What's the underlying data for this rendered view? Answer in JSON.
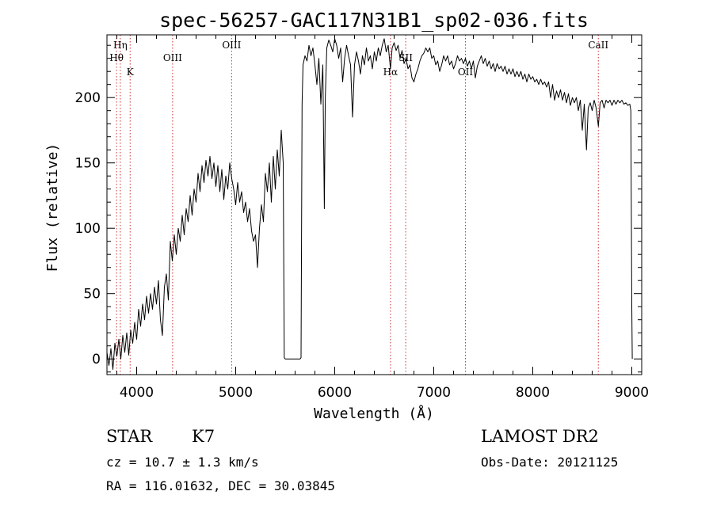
{
  "chart_data": {
    "type": "line",
    "title": "spec-56257-GAC117N31B1_sp02-036.fits",
    "xlabel": "Wavelength (Å)",
    "ylabel": "Flux (relative)",
    "xlim": [
      3700,
      9100
    ],
    "ylim": [
      -12,
      248
    ],
    "x_ticks": [
      4000,
      5000,
      6000,
      7000,
      8000,
      9000
    ],
    "y_ticks": [
      0,
      50,
      100,
      150,
      200
    ],
    "grid": false,
    "series": [
      {
        "color": "#000000",
        "points": [
          [
            3700,
            5
          ],
          [
            3720,
            -5
          ],
          [
            3740,
            8
          ],
          [
            3760,
            -8
          ],
          [
            3780,
            12
          ],
          [
            3800,
            2
          ],
          [
            3820,
            15
          ],
          [
            3840,
            0
          ],
          [
            3860,
            18
          ],
          [
            3880,
            5
          ],
          [
            3900,
            20
          ],
          [
            3920,
            3
          ],
          [
            3940,
            22
          ],
          [
            3960,
            12
          ],
          [
            3980,
            28
          ],
          [
            4000,
            15
          ],
          [
            4020,
            38
          ],
          [
            4040,
            25
          ],
          [
            4060,
            42
          ],
          [
            4080,
            30
          ],
          [
            4100,
            48
          ],
          [
            4120,
            35
          ],
          [
            4140,
            50
          ],
          [
            4160,
            38
          ],
          [
            4180,
            55
          ],
          [
            4200,
            42
          ],
          [
            4220,
            60
          ],
          [
            4240,
            30
          ],
          [
            4260,
            18
          ],
          [
            4280,
            55
          ],
          [
            4300,
            65
          ],
          [
            4320,
            45
          ],
          [
            4340,
            90
          ],
          [
            4360,
            75
          ],
          [
            4380,
            95
          ],
          [
            4400,
            80
          ],
          [
            4420,
            100
          ],
          [
            4440,
            90
          ],
          [
            4460,
            110
          ],
          [
            4480,
            95
          ],
          [
            4500,
            115
          ],
          [
            4520,
            105
          ],
          [
            4540,
            125
          ],
          [
            4560,
            110
          ],
          [
            4580,
            130
          ],
          [
            4600,
            120
          ],
          [
            4620,
            142
          ],
          [
            4640,
            128
          ],
          [
            4660,
            148
          ],
          [
            4680,
            135
          ],
          [
            4700,
            152
          ],
          [
            4720,
            140
          ],
          [
            4740,
            155
          ],
          [
            4760,
            138
          ],
          [
            4780,
            150
          ],
          [
            4800,
            132
          ],
          [
            4820,
            148
          ],
          [
            4840,
            128
          ],
          [
            4860,
            145
          ],
          [
            4880,
            122
          ],
          [
            4900,
            140
          ],
          [
            4920,
            130
          ],
          [
            4940,
            150
          ],
          [
            4960,
            138
          ],
          [
            4980,
            130
          ],
          [
            5000,
            118
          ],
          [
            5020,
            135
          ],
          [
            5040,
            120
          ],
          [
            5060,
            128
          ],
          [
            5080,
            112
          ],
          [
            5100,
            120
          ],
          [
            5120,
            105
          ],
          [
            5140,
            115
          ],
          [
            5160,
            98
          ],
          [
            5180,
            90
          ],
          [
            5200,
            95
          ],
          [
            5220,
            70
          ],
          [
            5240,
            100
          ],
          [
            5260,
            118
          ],
          [
            5280,
            105
          ],
          [
            5300,
            142
          ],
          [
            5320,
            128
          ],
          [
            5340,
            150
          ],
          [
            5360,
            120
          ],
          [
            5380,
            155
          ],
          [
            5400,
            130
          ],
          [
            5420,
            160
          ],
          [
            5440,
            140
          ],
          [
            5460,
            175
          ],
          [
            5480,
            150
          ],
          [
            5490,
            1
          ],
          [
            5500,
            0
          ],
          [
            5550,
            0
          ],
          [
            5600,
            0
          ],
          [
            5650,
            0
          ],
          [
            5660,
            1
          ],
          [
            5670,
            195
          ],
          [
            5680,
            225
          ],
          [
            5700,
            232
          ],
          [
            5720,
            228
          ],
          [
            5740,
            240
          ],
          [
            5760,
            232
          ],
          [
            5780,
            238
          ],
          [
            5800,
            225
          ],
          [
            5820,
            210
          ],
          [
            5840,
            230
          ],
          [
            5860,
            195
          ],
          [
            5880,
            225
          ],
          [
            5895,
            115
          ],
          [
            5905,
            200
          ],
          [
            5920,
            238
          ],
          [
            5940,
            244
          ],
          [
            5960,
            240
          ],
          [
            5980,
            235
          ],
          [
            6000,
            245
          ],
          [
            6020,
            240
          ],
          [
            6040,
            230
          ],
          [
            6060,
            238
          ],
          [
            6080,
            212
          ],
          [
            6100,
            230
          ],
          [
            6120,
            240
          ],
          [
            6140,
            232
          ],
          [
            6160,
            225
          ],
          [
            6180,
            185
          ],
          [
            6200,
            225
          ],
          [
            6220,
            235
          ],
          [
            6240,
            228
          ],
          [
            6260,
            218
          ],
          [
            6280,
            232
          ],
          [
            6300,
            225
          ],
          [
            6320,
            238
          ],
          [
            6340,
            228
          ],
          [
            6360,
            232
          ],
          [
            6380,
            222
          ],
          [
            6400,
            235
          ],
          [
            6420,
            228
          ],
          [
            6440,
            238
          ],
          [
            6460,
            232
          ],
          [
            6480,
            240
          ],
          [
            6500,
            245
          ],
          [
            6520,
            235
          ],
          [
            6540,
            240
          ],
          [
            6563,
            222
          ],
          [
            6580,
            238
          ],
          [
            6600,
            242
          ],
          [
            6620,
            236
          ],
          [
            6640,
            240
          ],
          [
            6660,
            230
          ],
          [
            6680,
            236
          ],
          [
            6700,
            226
          ],
          [
            6720,
            230
          ],
          [
            6740,
            222
          ],
          [
            6760,
            225
          ],
          [
            6780,
            215
          ],
          [
            6800,
            212
          ],
          [
            6820,
            218
          ],
          [
            6840,
            222
          ],
          [
            6860,
            228
          ],
          [
            6880,
            232
          ],
          [
            6900,
            234
          ],
          [
            6920,
            238
          ],
          [
            6940,
            235
          ],
          [
            6960,
            238
          ],
          [
            6980,
            230
          ],
          [
            7000,
            232
          ],
          [
            7020,
            225
          ],
          [
            7040,
            228
          ],
          [
            7060,
            220
          ],
          [
            7080,
            225
          ],
          [
            7100,
            232
          ],
          [
            7120,
            228
          ],
          [
            7140,
            232
          ],
          [
            7160,
            225
          ],
          [
            7180,
            228
          ],
          [
            7200,
            222
          ],
          [
            7220,
            226
          ],
          [
            7240,
            232
          ],
          [
            7260,
            228
          ],
          [
            7280,
            230
          ],
          [
            7300,
            226
          ],
          [
            7320,
            230
          ],
          [
            7340,
            224
          ],
          [
            7360,
            228
          ],
          [
            7380,
            222
          ],
          [
            7400,
            228
          ],
          [
            7420,
            215
          ],
          [
            7440,
            224
          ],
          [
            7460,
            228
          ],
          [
            7480,
            232
          ],
          [
            7500,
            226
          ],
          [
            7520,
            230
          ],
          [
            7540,
            224
          ],
          [
            7560,
            228
          ],
          [
            7580,
            222
          ],
          [
            7600,
            226
          ],
          [
            7620,
            220
          ],
          [
            7640,
            226
          ],
          [
            7660,
            222
          ],
          [
            7680,
            224
          ],
          [
            7700,
            220
          ],
          [
            7720,
            224
          ],
          [
            7740,
            218
          ],
          [
            7760,
            222
          ],
          [
            7780,
            218
          ],
          [
            7800,
            222
          ],
          [
            7820,
            216
          ],
          [
            7840,
            220
          ],
          [
            7860,
            216
          ],
          [
            7880,
            220
          ],
          [
            7900,
            214
          ],
          [
            7920,
            218
          ],
          [
            7940,
            212
          ],
          [
            7960,
            218
          ],
          [
            7980,
            214
          ],
          [
            8000,
            216
          ],
          [
            8020,
            212
          ],
          [
            8040,
            214
          ],
          [
            8060,
            210
          ],
          [
            8080,
            214
          ],
          [
            8100,
            210
          ],
          [
            8120,
            212
          ],
          [
            8140,
            208
          ],
          [
            8160,
            212
          ],
          [
            8180,
            200
          ],
          [
            8200,
            210
          ],
          [
            8220,
            198
          ],
          [
            8240,
            205
          ],
          [
            8260,
            200
          ],
          [
            8280,
            206
          ],
          [
            8300,
            198
          ],
          [
            8320,
            204
          ],
          [
            8340,
            196
          ],
          [
            8360,
            203
          ],
          [
            8380,
            194
          ],
          [
            8400,
            200
          ],
          [
            8420,
            196
          ],
          [
            8440,
            200
          ],
          [
            8460,
            190
          ],
          [
            8480,
            198
          ],
          [
            8500,
            175
          ],
          [
            8520,
            195
          ],
          [
            8542,
            160
          ],
          [
            8560,
            192
          ],
          [
            8580,
            196
          ],
          [
            8600,
            190
          ],
          [
            8620,
            198
          ],
          [
            8640,
            192
          ],
          [
            8662,
            178
          ],
          [
            8680,
            196
          ],
          [
            8700,
            198
          ],
          [
            8720,
            192
          ],
          [
            8740,
            198
          ],
          [
            8760,
            196
          ],
          [
            8780,
            198
          ],
          [
            8800,
            194
          ],
          [
            8820,
            198
          ],
          [
            8840,
            195
          ],
          [
            8860,
            198
          ],
          [
            8880,
            196
          ],
          [
            8900,
            198
          ],
          [
            8920,
            195
          ],
          [
            8940,
            196
          ],
          [
            8960,
            194
          ],
          [
            8980,
            195
          ],
          [
            8990,
            190
          ],
          [
            9000,
            40
          ],
          [
            9005,
            0
          ]
        ]
      }
    ],
    "line_markers": [
      {
        "label": "Hη",
        "x": 3835
      },
      {
        "label": "Hθ",
        "x": 3797
      },
      {
        "label": "K",
        "x": 3934
      },
      {
        "label": "OIII",
        "x": 4363
      },
      {
        "label": "OIII",
        "x": 4959
      },
      {
        "label": "Hα",
        "x": 6563
      },
      {
        "label": "SII",
        "x": 6717
      },
      {
        "label": "OII",
        "x": 7320
      },
      {
        "label": "CaII",
        "x": 8662
      }
    ],
    "marker_color": "#cc3333"
  },
  "info": {
    "object_type": "STAR",
    "subclass": "K7",
    "survey": "LAMOST DR2",
    "cz": "cz = 10.7 ± 1.3 km/s",
    "obs_date": "Obs-Date: 20121125",
    "radec": "RA = 116.01632, DEC =  30.03845"
  }
}
